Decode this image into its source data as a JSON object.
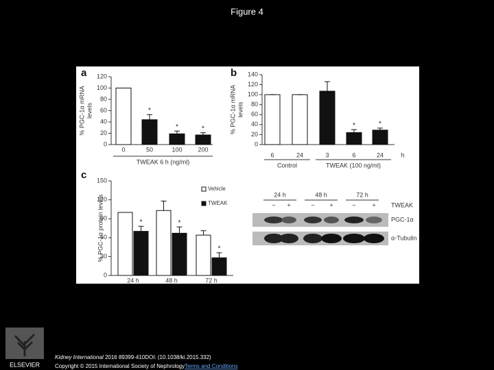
{
  "header": {
    "title": "Figure 4"
  },
  "chart_data": [
    {
      "type": "bar",
      "label": "a",
      "ylabel": [
        "% PGC-1α mRNA",
        "levels"
      ],
      "xlabel": "TWEAK 6 h (ng/ml)",
      "categories": [
        "0",
        "50",
        "100",
        "200"
      ],
      "values": [
        100,
        44,
        19,
        17
      ],
      "errors": [
        0,
        9,
        5,
        4
      ],
      "colors": [
        "#ffffff",
        "#111111",
        "#111111",
        "#111111"
      ],
      "significant": [
        false,
        true,
        true,
        true
      ],
      "marker": "*",
      "ylim": [
        0,
        120
      ],
      "yticks": [
        0,
        20,
        40,
        60,
        80,
        100,
        120
      ]
    },
    {
      "type": "bar",
      "label": "b",
      "ylabel": [
        "% PGC-1α mRNA",
        "levels"
      ],
      "categories": [
        "6",
        "24",
        "3",
        "6",
        "24"
      ],
      "x_unit": "h",
      "groups": [
        "Control",
        "TWEAK (100 ng/ml)"
      ],
      "values": [
        100,
        100,
        107,
        24,
        29
      ],
      "errors": [
        0,
        0,
        19,
        6,
        4
      ],
      "colors": [
        "#ffffff",
        "#ffffff",
        "#111111",
        "#111111",
        "#111111"
      ],
      "significant": [
        false,
        false,
        false,
        true,
        true
      ],
      "marker": "*",
      "ylim": [
        0,
        140
      ],
      "yticks": [
        0,
        20,
        40,
        60,
        80,
        100,
        120,
        140
      ]
    },
    {
      "type": "grouped_bar",
      "label": "c",
      "ylabel": [
        "% PGC-1α protein levels"
      ],
      "categories": [
        "24 h",
        "48 h",
        "72 h"
      ],
      "series": [
        {
          "name": "Vehicle",
          "color": "#ffffff",
          "values": [
            100,
            103,
            64
          ],
          "errors": [
            0,
            15,
            7
          ],
          "significant": [
            false,
            false,
            false
          ]
        },
        {
          "name": "TWEAK",
          "color": "#111111",
          "values": [
            70,
            67,
            28
          ],
          "errors": [
            8,
            10,
            8
          ],
          "significant": [
            true,
            true,
            true
          ]
        }
      ],
      "marker": "*",
      "ylim": [
        0,
        150
      ],
      "yticks": [
        0,
        30,
        60,
        90,
        120,
        150
      ]
    }
  ],
  "blot": {
    "timepoints": [
      "24 h",
      "48 h",
      "72 h"
    ],
    "treatment": [
      "−",
      "+",
      "−",
      "+",
      "−",
      "+"
    ],
    "treatment_label": "TWEAK",
    "rows": [
      "PGC-1α",
      "α-Tubulin"
    ]
  },
  "footer": {
    "journal": "Kidney International",
    "citation": " 2016 89399-410DOI: (10.1038/ki.2015.332)",
    "copyright": "Copyright © 2015 International Society of Nephrology",
    "link": "Terms and Conditions",
    "logo": "ELSEVIER"
  }
}
